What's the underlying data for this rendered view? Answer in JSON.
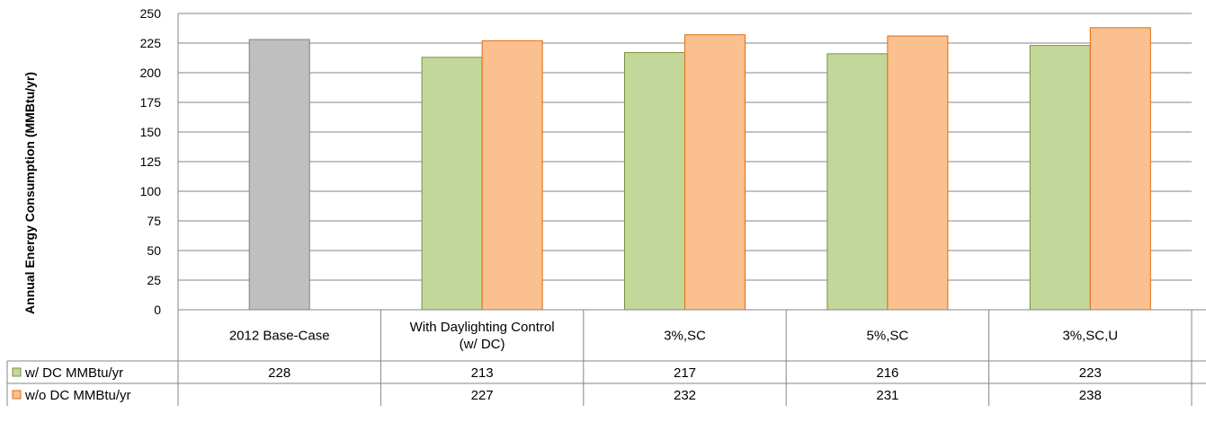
{
  "chart_data": {
    "type": "bar",
    "ylabel": "Annual Energy Consumption (MMBtu/yr)",
    "ylim": [
      0,
      250
    ],
    "yticks": [
      0,
      25,
      50,
      75,
      100,
      125,
      150,
      175,
      200,
      225,
      250
    ],
    "grid": true,
    "categories": [
      [
        "2012 Base-Case"
      ],
      [
        "With Daylighting Control",
        "(w/ DC)"
      ],
      [
        "3%,SC"
      ],
      [
        "5%,SC"
      ],
      [
        "3%,SC,U"
      ]
    ],
    "series": [
      {
        "name": "w/ DC MMBtu/yr",
        "color": "#c4d79b",
        "stroke": "#77933c",
        "values": [
          228,
          213,
          217,
          216,
          223
        ]
      },
      {
        "name": "w/o DC MMBtu/yr",
        "color": "#fac090",
        "stroke": "#e46c0a",
        "values": [
          null,
          227,
          232,
          231,
          238
        ]
      }
    ],
    "base_case_color": "#bfbfbf",
    "base_case_stroke": "#7f7f7f",
    "table_values": [
      [
        "228",
        "213",
        "217",
        "216",
        "223"
      ],
      [
        "",
        "227",
        "232",
        "231",
        "238"
      ]
    ],
    "legend_placement": "data-table"
  }
}
